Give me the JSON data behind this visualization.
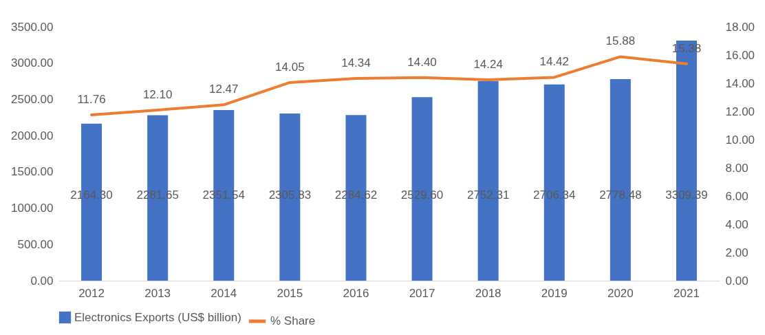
{
  "chart_data": {
    "type": "bar",
    "categories": [
      "2012",
      "2013",
      "2014",
      "2015",
      "2016",
      "2017",
      "2018",
      "2019",
      "2020",
      "2021"
    ],
    "series": [
      {
        "name": "Electronics Exports (US$ billion)",
        "color": "#4472c4",
        "values": [
          2164.3,
          2281.65,
          2351.54,
          2305.83,
          2284.62,
          2529.6,
          2752.31,
          2706.34,
          2778.48,
          3309.39
        ],
        "value_labels": [
          "2164.30",
          "2281.65",
          "2351.54",
          "2305.83",
          "2284.62",
          "2529.60",
          "2752.31",
          "2706.34",
          "2778.48",
          "3309.39"
        ]
      },
      {
        "name": "% Share",
        "type": "line",
        "axis": "y2",
        "color": "#ed7d31",
        "values": [
          11.76,
          12.1,
          12.47,
          14.05,
          14.34,
          14.4,
          14.24,
          14.42,
          15.88,
          15.38
        ],
        "value_labels": [
          "11.76",
          "12.10",
          "12.47",
          "14.05",
          "14.34",
          "14.40",
          "14.24",
          "14.42",
          "15.88",
          "15.38"
        ]
      }
    ],
    "ylim": [
      0,
      3500
    ],
    "yticks": [
      {
        "value": 0,
        "label": "0.00"
      },
      {
        "value": 500,
        "label": "500.00"
      },
      {
        "value": 1000,
        "label": "1000.00"
      },
      {
        "value": 1500,
        "label": "1500.00"
      },
      {
        "value": 2000,
        "label": "2000.00"
      },
      {
        "value": 2500,
        "label": "2500.00"
      },
      {
        "value": 3000,
        "label": "3000.00"
      },
      {
        "value": 3500,
        "label": "3500.00"
      }
    ],
    "y2lim": [
      0,
      18
    ],
    "y2ticks": [
      {
        "value": 0,
        "label": "0.00"
      },
      {
        "value": 2,
        "label": "2.00"
      },
      {
        "value": 4,
        "label": "4.00"
      },
      {
        "value": 6,
        "label": "6.00"
      },
      {
        "value": 8,
        "label": "8.00"
      },
      {
        "value": 10,
        "label": "10.00"
      },
      {
        "value": 12,
        "label": "12.00"
      },
      {
        "value": 14,
        "label": "14.00"
      },
      {
        "value": 16,
        "label": "16.00"
      },
      {
        "value": 18,
        "label": "18.00"
      }
    ],
    "grid": false,
    "legend": "bottom"
  }
}
